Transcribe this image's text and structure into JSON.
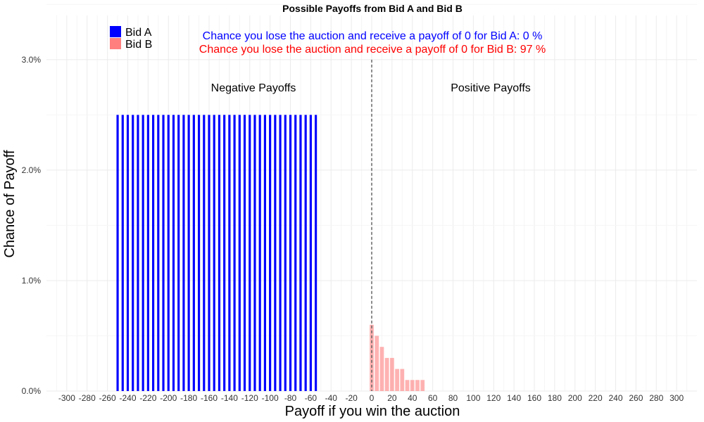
{
  "chart_data": {
    "type": "bar",
    "title": "Possible Payoffs from Bid A and Bid B",
    "xlabel": "Payoff if you win the auction",
    "ylabel": "Chance of Payoff",
    "xlim": [
      -320,
      320
    ],
    "ylim": [
      0,
      0.034
    ],
    "x_ticks": [
      -300,
      -280,
      -260,
      -240,
      -220,
      -200,
      -180,
      -160,
      -140,
      -120,
      -100,
      -80,
      -60,
      -40,
      -20,
      0,
      20,
      40,
      60,
      80,
      100,
      120,
      140,
      160,
      180,
      200,
      220,
      240,
      260,
      280,
      300
    ],
    "y_ticks": [
      0,
      0.01,
      0.02,
      0.03
    ],
    "y_tick_labels": [
      "0.0%",
      "1.0%",
      "2.0%",
      "3.0%"
    ],
    "grid": true,
    "legend_position": "top-left",
    "reference_line_x": 0,
    "series": [
      {
        "name": "Bid A",
        "color": "#0000ff",
        "points": [
          [
            -250,
            0.025
          ],
          [
            -245,
            0.025
          ],
          [
            -240,
            0.025
          ],
          [
            -235,
            0.025
          ],
          [
            -230,
            0.025
          ],
          [
            -225,
            0.025
          ],
          [
            -220,
            0.025
          ],
          [
            -215,
            0.025
          ],
          [
            -210,
            0.025
          ],
          [
            -205,
            0.025
          ],
          [
            -200,
            0.025
          ],
          [
            -195,
            0.025
          ],
          [
            -190,
            0.025
          ],
          [
            -185,
            0.025
          ],
          [
            -180,
            0.025
          ],
          [
            -175,
            0.025
          ],
          [
            -170,
            0.025
          ],
          [
            -165,
            0.025
          ],
          [
            -160,
            0.025
          ],
          [
            -155,
            0.025
          ],
          [
            -150,
            0.025
          ],
          [
            -145,
            0.025
          ],
          [
            -140,
            0.025
          ],
          [
            -135,
            0.025
          ],
          [
            -130,
            0.025
          ],
          [
            -125,
            0.025
          ],
          [
            -120,
            0.025
          ],
          [
            -115,
            0.025
          ],
          [
            -110,
            0.025
          ],
          [
            -105,
            0.025
          ],
          [
            -100,
            0.025
          ],
          [
            -95,
            0.025
          ],
          [
            -90,
            0.025
          ],
          [
            -85,
            0.025
          ],
          [
            -80,
            0.025
          ],
          [
            -75,
            0.025
          ],
          [
            -70,
            0.025
          ],
          [
            -65,
            0.025
          ],
          [
            -60,
            0.025
          ],
          [
            -55,
            0.025
          ]
        ]
      },
      {
        "name": "Bid B",
        "color": "#ff7f7f",
        "points": [
          [
            0,
            0.006
          ],
          [
            5,
            0.005
          ],
          [
            10,
            0.004
          ],
          [
            15,
            0.003
          ],
          [
            20,
            0.003
          ],
          [
            25,
            0.002
          ],
          [
            30,
            0.002
          ],
          [
            35,
            0.001
          ],
          [
            40,
            0.001
          ],
          [
            45,
            0.001
          ],
          [
            50,
            0.001
          ]
        ]
      }
    ],
    "annotations": {
      "negative": "Negative Payoffs",
      "positive": "Positive Payoffs",
      "lose_a_text": "Chance you lose the auction and receive a payoff of 0 for Bid A:  0 %",
      "lose_b_text": "Chance you lose the auction and receive a payoff of 0 for Bid B:  97 %",
      "lose_a_color": "#0000ff",
      "lose_b_color": "#ff0000"
    }
  }
}
